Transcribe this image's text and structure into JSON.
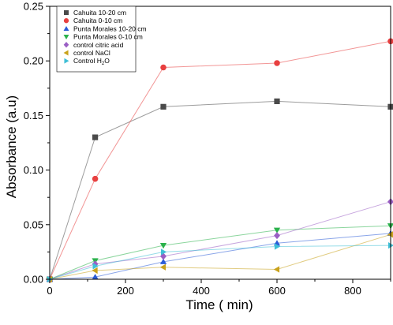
{
  "chart_data": {
    "type": "line",
    "xlabel": "Time ( min)",
    "ylabel": "Absorbance (a.u)",
    "xlim": [
      0,
      900
    ],
    "ylim": [
      0,
      0.25
    ],
    "xticks": [
      "0",
      "200",
      "400",
      "600",
      "800"
    ],
    "yticks": [
      "0.00",
      "0.05",
      "0.10",
      "0.15",
      "0.20",
      "0.25"
    ],
    "xtick_values": [
      0,
      200,
      400,
      600,
      800
    ],
    "ytick_values": [
      0,
      0.05,
      0.1,
      0.15,
      0.2,
      0.25
    ],
    "grid": false,
    "legend_position": "top-left",
    "series": [
      {
        "name": "Cahuita 10-20 cm",
        "marker": "square",
        "color": "#4a4a4a",
        "x": [
          0,
          120,
          300,
          600,
          900
        ],
        "y": [
          0,
          0.13,
          0.158,
          0.163,
          0.158
        ]
      },
      {
        "name": "Cahuita 0-10 cm",
        "marker": "circle",
        "color": "#e84040",
        "x": [
          0,
          120,
          300,
          600,
          900
        ],
        "y": [
          0,
          0.092,
          0.194,
          0.198,
          0.218
        ]
      },
      {
        "name": "Punta Morales 10-20 cm",
        "marker": "triangle-up",
        "color": "#2a5bd7",
        "x": [
          0,
          120,
          300,
          600,
          900
        ],
        "y": [
          0,
          0.002,
          0.016,
          0.033,
          0.042
        ]
      },
      {
        "name": "Punta Morales 0-10 cm",
        "marker": "triangle-down",
        "color": "#2bb24c",
        "x": [
          0,
          120,
          300,
          600,
          900
        ],
        "y": [
          0,
          0.017,
          0.031,
          0.045,
          0.049
        ]
      },
      {
        "name": "control citric acid",
        "marker": "diamond",
        "color": "#9a5fc4",
        "x": [
          0,
          120,
          300,
          600,
          900
        ],
        "y": [
          0,
          0.014,
          0.021,
          0.04,
          0.071
        ]
      },
      {
        "name": "control  NaCl",
        "marker": "triangle-left",
        "color": "#c9a21c",
        "x": [
          0,
          120,
          300,
          600,
          900
        ],
        "y": [
          0,
          0.008,
          0.011,
          0.009,
          0.041
        ]
      },
      {
        "name": "Control H2O",
        "marker": "triangle-right",
        "color": "#3fbfd6",
        "x": [
          0,
          120,
          300,
          600,
          900
        ],
        "y": [
          0,
          0.012,
          0.025,
          0.03,
          0.031
        ]
      }
    ]
  }
}
